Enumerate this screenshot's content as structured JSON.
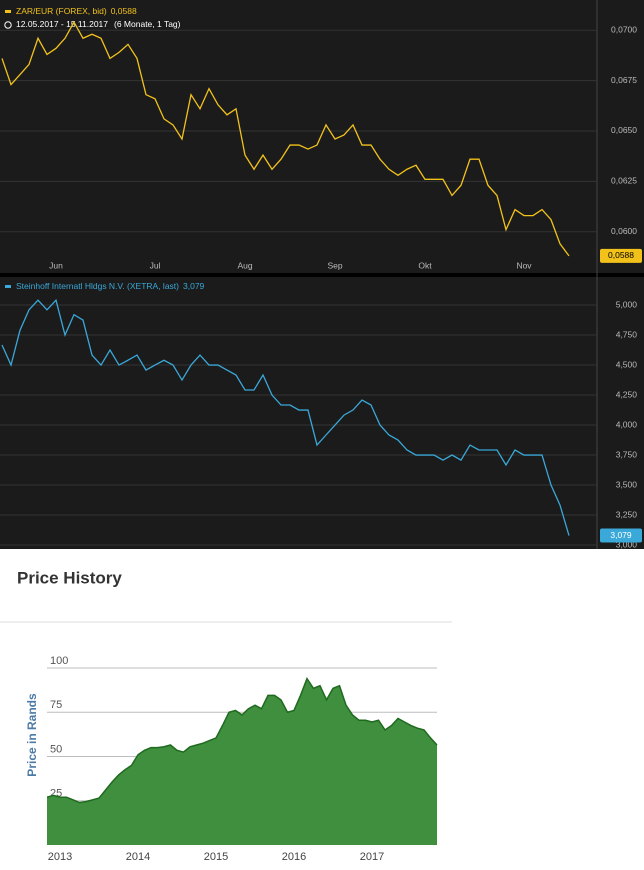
{
  "chart_data": [
    {
      "type": "line",
      "series": [
        {
          "name": "ZAR/EUR (FOREX, bid)",
          "color": "#f2c21b",
          "values": [
            0.0686,
            0.0673,
            0.0678,
            0.0683,
            0.0696,
            0.0688,
            0.0691,
            0.0696,
            0.0704,
            0.0696,
            0.0698,
            0.0696,
            0.0686,
            0.0689,
            0.0693,
            0.0686,
            0.0668,
            0.0666,
            0.0656,
            0.0653,
            0.0646,
            0.0668,
            0.0661,
            0.0671,
            0.0663,
            0.0658,
            0.0661,
            0.0638,
            0.0631,
            0.0638,
            0.0631,
            0.0636,
            0.0643,
            0.0643,
            0.0641,
            0.0643,
            0.0653,
            0.0646,
            0.0648,
            0.0653,
            0.0643,
            0.0643,
            0.0636,
            0.0631,
            0.0628,
            0.0631,
            0.0633,
            0.0626,
            0.0626,
            0.0626,
            0.0618,
            0.0623,
            0.0636,
            0.0636,
            0.0623,
            0.0618,
            0.0601,
            0.0611,
            0.0608,
            0.0608,
            0.0611,
            0.0606,
            0.0594,
            0.0588
          ]
        }
      ],
      "last_value_label": "0,0588",
      "subtitle": "12.05.2017 - 15.11.2017",
      "subtitle_note": "(6 Monate, 1 Tag)",
      "categories": [
        null,
        null,
        null,
        null,
        null,
        null,
        "Jun",
        null,
        null,
        null,
        null,
        null,
        null,
        null,
        null,
        null,
        null,
        "Jul",
        null,
        null,
        null,
        null,
        null,
        null,
        null,
        null,
        null,
        "Aug",
        null,
        null,
        null,
        null,
        null,
        null,
        null,
        null,
        null,
        "Sep",
        null,
        null,
        null,
        null,
        null,
        null,
        null,
        null,
        null,
        "Okt",
        null,
        null,
        null,
        null,
        null,
        null,
        null,
        null,
        null,
        null,
        "Nov",
        null,
        null,
        null,
        null,
        null
      ],
      "ylim": [
        0.0581,
        0.0714
      ],
      "yticks": [
        {
          "value": 0.06,
          "label": "0,0600"
        },
        {
          "value": 0.0625,
          "label": "0,0625"
        },
        {
          "value": 0.065,
          "label": "0,0650"
        },
        {
          "value": 0.0675,
          "label": "0,0675"
        },
        {
          "value": 0.07,
          "label": "0,0700"
        }
      ],
      "grid": true
    },
    {
      "type": "line",
      "series": [
        {
          "name": "Steinhoff Internatl Hldgs N.V. (XETRA, last)",
          "color": "#3aa8d8",
          "values": [
            4.667,
            4.5,
            4.79,
            4.96,
            5.04,
            4.96,
            5.04,
            4.75,
            4.92,
            4.875,
            4.583,
            4.5,
            4.625,
            4.5,
            4.54,
            4.583,
            4.458,
            4.5,
            4.54,
            4.5,
            4.375,
            4.5,
            4.583,
            4.5,
            4.5,
            4.458,
            4.417,
            4.292,
            4.292,
            4.417,
            4.25,
            4.167,
            4.167,
            4.125,
            4.125,
            3.833,
            3.917,
            4.0,
            4.083,
            4.125,
            4.208,
            4.167,
            4.0,
            3.917,
            3.875,
            3.792,
            3.75,
            3.75,
            3.75,
            3.708,
            3.75,
            3.708,
            3.833,
            3.792,
            3.792,
            3.792,
            3.667,
            3.792,
            3.75,
            3.75,
            3.75,
            3.5,
            3.333,
            3.079
          ]
        }
      ],
      "last_value_label": "3,079",
      "ylim": [
        2.967,
        5.217
      ],
      "yticks": [
        {
          "value": 3,
          "label": "3,000"
        },
        {
          "value": 3.25,
          "label": "3,250"
        },
        {
          "value": 3.5,
          "label": "3,500"
        },
        {
          "value": 3.75,
          "label": "3,750"
        },
        {
          "value": 4,
          "label": "4,000"
        },
        {
          "value": 4.25,
          "label": "4,250"
        },
        {
          "value": 4.5,
          "label": "4,500"
        },
        {
          "value": 4.75,
          "label": "4,750"
        },
        {
          "value": 5,
          "label": "5,000"
        }
      ],
      "grid": true
    },
    {
      "type": "area",
      "title": "Price History",
      "y_label": "Price in Rands",
      "color": "#3f8f3f",
      "categories": [
        null,
        null,
        "2013",
        null,
        null,
        null,
        null,
        null,
        null,
        null,
        null,
        null,
        null,
        null,
        "2014",
        null,
        null,
        null,
        null,
        null,
        null,
        null,
        null,
        null,
        null,
        null,
        "2015",
        null,
        null,
        null,
        null,
        null,
        null,
        null,
        null,
        null,
        null,
        null,
        "2016",
        null,
        null,
        null,
        null,
        null,
        null,
        null,
        null,
        null,
        null,
        null,
        "2017",
        null,
        null,
        null,
        null,
        null,
        null,
        null,
        null,
        null,
        null
      ],
      "values": [
        27,
        28,
        27,
        27,
        25.5,
        24,
        24.5,
        25.5,
        26.5,
        31,
        35.5,
        39.5,
        42.5,
        45,
        51,
        53.5,
        55,
        55,
        55.5,
        56.5,
        53.5,
        52.5,
        55.5,
        56.5,
        57.5,
        59,
        60.5,
        67.5,
        75,
        76,
        73.5,
        77,
        79,
        77,
        84.5,
        84.5,
        82,
        75,
        76,
        84.5,
        94,
        88.5,
        90,
        82,
        88.5,
        90,
        79,
        73.5,
        70.5,
        70.5,
        69.5,
        70.5,
        65,
        67.5,
        71.5,
        69.5,
        67.5,
        66,
        65,
        60.5,
        56.5
      ],
      "ylim": [
        0,
        100
      ],
      "yticks": [
        25,
        50,
        75,
        100
      ],
      "grid": true
    }
  ]
}
